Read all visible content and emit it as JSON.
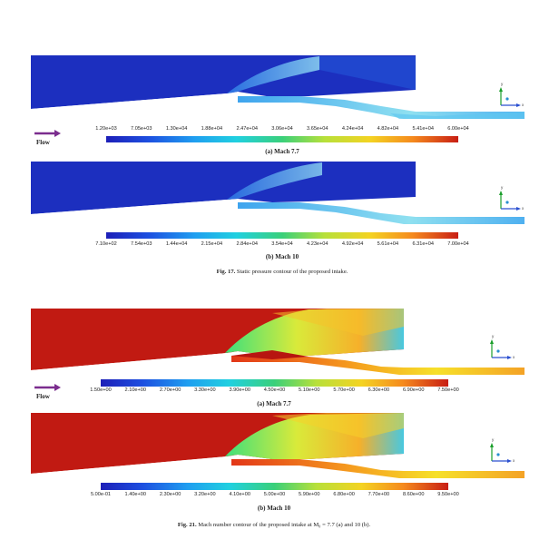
{
  "figure17": {
    "panel_a": {
      "ticks": [
        "1.20e+03",
        "7.05e+03",
        "1.30e+04",
        "1.88e+04",
        "2.47e+04",
        "3.06e+04",
        "3.65e+04",
        "4.24e+04",
        "4.82e+04",
        "5.41e+04",
        "6.00e+04"
      ],
      "label": "(a) Mach 7.7"
    },
    "panel_b": {
      "ticks": [
        "7.10e+02",
        "7.54e+03",
        "1.44e+04",
        "2.15e+04",
        "2.84e+04",
        "3.54e+04",
        "4.23e+04",
        "4.92e+04",
        "5.61e+04",
        "6.31e+04",
        "7.00e+04"
      ],
      "label": "(b) Mach 10"
    },
    "caption_prefix": "Fig. 17.",
    "caption": "Static pressure contour of the proposed intake."
  },
  "figure21": {
    "panel_a": {
      "ticks": [
        "1.50e+00",
        "2.10e+00",
        "2.70e+00",
        "3.30e+00",
        "3.90e+00",
        "4.50e+00",
        "5.10e+00",
        "5.70e+00",
        "6.30e+00",
        "6.90e+00",
        "7.50e+00"
      ],
      "label": "(a) Mach 7.7"
    },
    "panel_b": {
      "ticks": [
        "5.00e-01",
        "1.40e+00",
        "2.30e+00",
        "3.20e+00",
        "4.10e+00",
        "5.00e+00",
        "5.90e+00",
        "6.80e+00",
        "7.70e+00",
        "8.60e+00",
        "9.50e+00"
      ],
      "label": "(b) Mach 10"
    },
    "caption_prefix": "Fig. 21.",
    "caption": "Mach number contour of the proposed intake at M₀ = 7.7 (a) and 10 (b)."
  },
  "flow_label": "Flow",
  "axis_labels": {
    "x": "x",
    "y": "y"
  },
  "colors": {
    "pressure_low": "#1c2fbf",
    "mach_high": "#c11a12",
    "flow_arrow": "#7b2d8e"
  }
}
